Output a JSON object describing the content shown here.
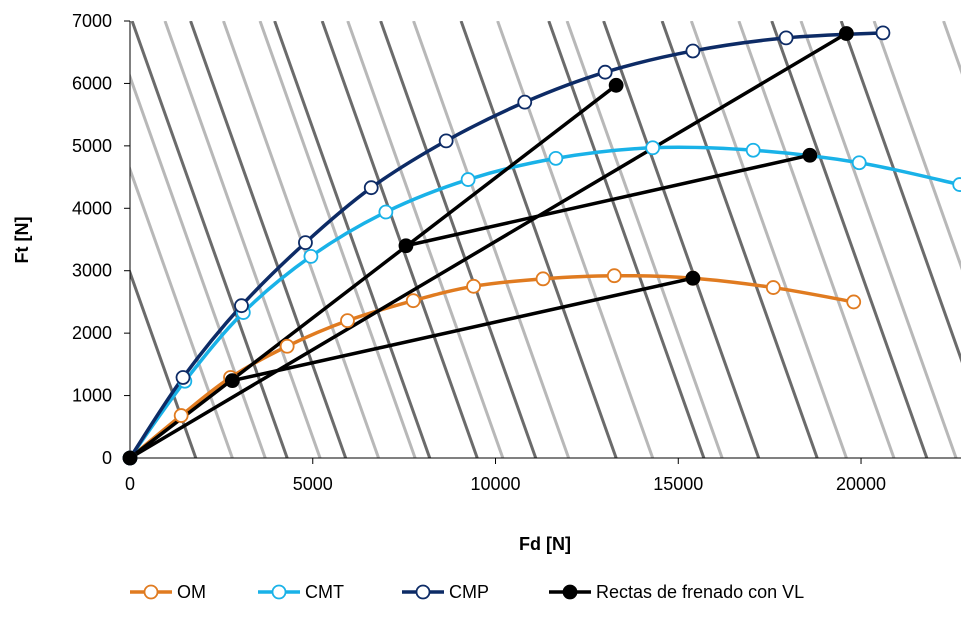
{
  "chart_data": {
    "type": "line",
    "xlabel": "Fd [N]",
    "ylabel": "Ft [N]",
    "xlim": [
      0,
      22500
    ],
    "ylim": [
      0,
      7000
    ],
    "x_ticks": [
      "0",
      "5000",
      "10000",
      "15000",
      "20000"
    ],
    "y_ticks": [
      "0",
      "1000",
      "2000",
      "3000",
      "4000",
      "5000",
      "6000",
      "7000"
    ],
    "grid": false,
    "legend_position": "bottom",
    "background_lines": {
      "slope": -1.65,
      "dark_color": "#6b6b6b",
      "light_color": "#b8b8b8",
      "dark_x_intercepts": [
        1800,
        4300,
        5900,
        8200,
        9500,
        11100,
        13300,
        15700,
        17200,
        18800,
        21800,
        23700
      ],
      "light_x_intercepts": [
        2800,
        3700,
        5200,
        6800,
        7800,
        10200,
        12000,
        14300,
        16200,
        19600,
        20900,
        22600,
        24600,
        26500,
        27800,
        30200,
        31900,
        33600
      ]
    },
    "series": [
      {
        "name": "OM",
        "color": "#e07b20",
        "marker": "open",
        "points": [
          [
            0,
            0
          ],
          [
            1400,
            680
          ],
          [
            2750,
            1290
          ],
          [
            4300,
            1790
          ],
          [
            5950,
            2200
          ],
          [
            7750,
            2520
          ],
          [
            9400,
            2750
          ],
          [
            11300,
            2870
          ],
          [
            13250,
            2920
          ],
          [
            15400,
            2880
          ],
          [
            17600,
            2730
          ],
          [
            19800,
            2500
          ]
        ]
      },
      {
        "name": "CMT",
        "color": "#19b2e8",
        "marker": "open",
        "points": [
          [
            0,
            0
          ],
          [
            1500,
            1230
          ],
          [
            3100,
            2330
          ],
          [
            4950,
            3230
          ],
          [
            7000,
            3940
          ],
          [
            9250,
            4460
          ],
          [
            11650,
            4800
          ],
          [
            14300,
            4970
          ],
          [
            17050,
            4930
          ],
          [
            19950,
            4730
          ],
          [
            22700,
            4380
          ]
        ],
        "curve_extends_to": [
          22500,
          4400
        ]
      },
      {
        "name": "CMP",
        "color": "#0d2b66",
        "marker": "open",
        "points": [
          [
            0,
            0
          ],
          [
            1450,
            1290
          ],
          [
            3050,
            2440
          ],
          [
            4800,
            3450
          ],
          [
            6600,
            4330
          ],
          [
            8650,
            5080
          ],
          [
            10800,
            5700
          ],
          [
            13000,
            6180
          ],
          [
            15400,
            6520
          ],
          [
            17950,
            6730
          ],
          [
            20600,
            6810
          ]
        ],
        "curve_extends_to": [
          22500,
          6760
        ]
      },
      {
        "name": "Rectas de frenado con VL",
        "color": "#000000",
        "marker": "filled",
        "segments": [
          [
            [
              0,
              0
            ],
            [
              19600,
              6800
            ]
          ],
          [
            [
              2800,
              1240
            ],
            [
              15400,
              2880
            ]
          ],
          [
            [
              7550,
              3400
            ],
            [
              18600,
              4850
            ]
          ],
          [
            [
              0,
              0
            ],
            [
              13300,
              5970
            ]
          ]
        ],
        "points": [
          [
            0,
            0
          ],
          [
            2800,
            1240
          ],
          [
            7550,
            3400
          ],
          [
            13300,
            5970
          ],
          [
            15400,
            2880
          ],
          [
            18600,
            4850
          ],
          [
            19600,
            6800
          ]
        ]
      }
    ]
  }
}
